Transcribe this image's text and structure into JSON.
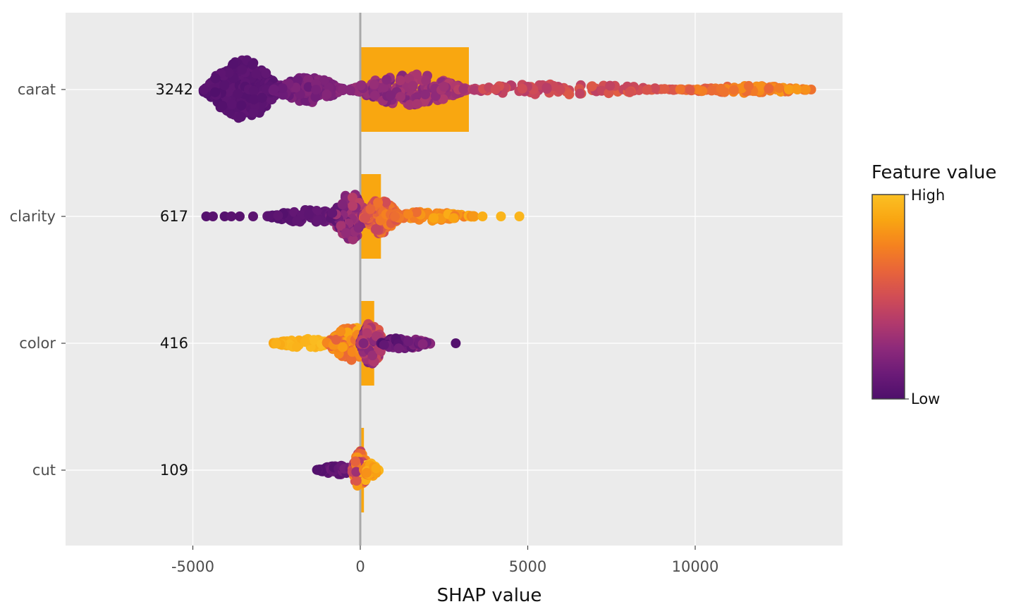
{
  "chart_data": {
    "type": "scatter",
    "subtype": "shap-beeswarm-with-importance-bars",
    "title": "",
    "xlabel": "SHAP value",
    "ylabel": "",
    "xlim": [
      -8800,
      14400
    ],
    "x_ticks": [
      -5000,
      0,
      5000,
      10000
    ],
    "x_tick_labels": [
      "-5000",
      "0",
      "5000",
      "10000"
    ],
    "grid": true,
    "zero_line": 0,
    "features": [
      {
        "name": "carat",
        "mean_abs_shap": 3242,
        "label": "3242",
        "distribution": [
          {
            "x0": -4700,
            "x1": -2400,
            "center": -3450,
            "halfwidth": 0.95,
            "c0": 0.02,
            "c1": 0.08
          },
          {
            "x0": -2600,
            "x1": -500,
            "center": -1600,
            "halfwidth": 0.42,
            "c0": 0.1,
            "c1": 0.22
          },
          {
            "x0": -300,
            "x1": 3200,
            "center": 1500,
            "halfwidth": 0.5,
            "c0": 0.2,
            "c1": 0.38
          },
          {
            "x0": 3200,
            "x1": 9500,
            "center": 5500,
            "halfwidth": 0.18,
            "c0": 0.4,
            "c1": 0.58
          },
          {
            "x0": 9500,
            "x1": 13500,
            "center": 11500,
            "halfwidth": 0.12,
            "c0": 0.6,
            "c1": 0.82
          }
        ],
        "outliers": [
          {
            "x": 12800,
            "c": 0.85
          },
          {
            "x": 13050,
            "c": 0.83
          },
          {
            "x": 13300,
            "c": 0.8
          }
        ]
      },
      {
        "name": "clarity",
        "mean_abs_shap": 617,
        "label": "617",
        "distribution": [
          {
            "x0": -2800,
            "x1": -700,
            "center": -1300,
            "halfwidth": 0.22,
            "c0": 0.03,
            "c1": 0.1
          },
          {
            "x0": -900,
            "x1": 200,
            "center": -250,
            "halfwidth": 0.75,
            "c0": 0.1,
            "c1": 0.4
          },
          {
            "x0": 100,
            "x1": 1200,
            "center": 550,
            "halfwidth": 0.55,
            "c0": 0.45,
            "c1": 0.75
          },
          {
            "x0": 1000,
            "x1": 3400,
            "center": 1800,
            "halfwidth": 0.15,
            "c0": 0.65,
            "c1": 0.92
          }
        ],
        "outliers": [
          {
            "x": -4600,
            "c": 0.03
          },
          {
            "x": -4400,
            "c": 0.04
          },
          {
            "x": -4050,
            "c": 0.03
          },
          {
            "x": -3850,
            "c": 0.05
          },
          {
            "x": -3600,
            "c": 0.04
          },
          {
            "x": -3200,
            "c": 0.06
          },
          {
            "x": 3650,
            "c": 0.92
          },
          {
            "x": 4200,
            "c": 0.95
          },
          {
            "x": 4750,
            "c": 0.95
          }
        ]
      },
      {
        "name": "color",
        "mean_abs_shap": 416,
        "label": "416",
        "distribution": [
          {
            "x0": -2600,
            "x1": -900,
            "center": -1500,
            "halfwidth": 0.15,
            "c0": 0.9,
            "c1": 0.98
          },
          {
            "x0": -1000,
            "x1": 300,
            "center": -200,
            "halfwidth": 0.55,
            "c0": 0.6,
            "c1": 0.9
          },
          {
            "x0": 0,
            "x1": 700,
            "center": 350,
            "halfwidth": 0.72,
            "c0": 0.15,
            "c1": 0.55
          },
          {
            "x0": 600,
            "x1": 2100,
            "center": 1200,
            "halfwidth": 0.2,
            "c0": 0.02,
            "c1": 0.25
          }
        ],
        "outliers": [
          {
            "x": 2850,
            "c": 0.02
          }
        ]
      },
      {
        "name": "cut",
        "mean_abs_shap": 109,
        "label": "109",
        "distribution": [
          {
            "x0": -1300,
            "x1": -200,
            "center": -600,
            "halfwidth": 0.15,
            "c0": 0.02,
            "c1": 0.15
          },
          {
            "x0": -250,
            "x1": 250,
            "center": 0,
            "halfwidth": 0.62,
            "c0": 0.35,
            "c1": 0.95
          },
          {
            "x0": 100,
            "x1": 550,
            "center": 300,
            "halfwidth": 0.22,
            "c0": 0.75,
            "c1": 0.98
          }
        ],
        "outliers": []
      }
    ],
    "bar_color": "#F9A710",
    "legend": {
      "title": "Feature value",
      "high_label": "High",
      "low_label": "Low",
      "placement": "right"
    },
    "colormap": [
      "#4E0F6B",
      "#6C1B78",
      "#8E2A7A",
      "#B23A6C",
      "#D14D55",
      "#E8643A",
      "#F5821F",
      "#F9A512",
      "#FBC023"
    ]
  }
}
